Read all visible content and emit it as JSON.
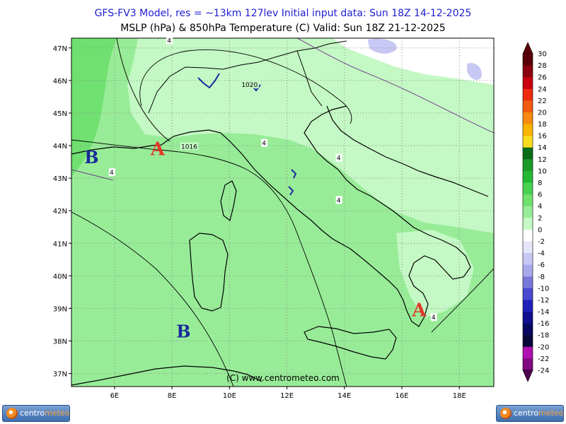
{
  "header": {
    "line1": "GFS-FV3 Model, res = ~13km 127lev    Initial input data: Sun 18Z 14-12-2025",
    "line2": "MSLP (hPa) & 850hPa Temperature (C)  Valid: Sun 18Z 21-12-2025"
  },
  "map": {
    "lon_range": [
      4.5,
      19.2
    ],
    "lat_range": [
      36.6,
      47.3
    ],
    "lon_ticks": [
      {
        "v": 6,
        "label": "6E"
      },
      {
        "v": 8,
        "label": "8E"
      },
      {
        "v": 10,
        "label": "10E"
      },
      {
        "v": 12,
        "label": "12E"
      },
      {
        "v": 14,
        "label": "14E"
      },
      {
        "v": 16,
        "label": "16E"
      },
      {
        "v": 18,
        "label": "18E"
      }
    ],
    "lat_ticks": [
      {
        "v": 47,
        "label": "47N"
      },
      {
        "v": 46,
        "label": "46N"
      },
      {
        "v": 45,
        "label": "45N"
      },
      {
        "v": 44,
        "label": "44N"
      },
      {
        "v": 43,
        "label": "43N"
      },
      {
        "v": 42,
        "label": "42N"
      },
      {
        "v": 41,
        "label": "41N"
      },
      {
        "v": 40,
        "label": "40N"
      },
      {
        "v": 39,
        "label": "39N"
      },
      {
        "v": 38,
        "label": "38N"
      },
      {
        "v": 37,
        "label": "37N"
      }
    ],
    "isobar_labels": [
      {
        "text": "1020",
        "lon": 10.7,
        "lat": 45.85
      },
      {
        "text": "1016",
        "lon": 8.6,
        "lat": 43.95
      }
    ],
    "isotherm_labels": [
      {
        "text": "4",
        "lon": 7.9,
        "lat": 47.2
      },
      {
        "text": "4",
        "lon": 11.2,
        "lat": 44.05
      },
      {
        "text": "4",
        "lon": 5.9,
        "lat": 43.15
      },
      {
        "text": "4",
        "lon": 13.8,
        "lat": 43.6
      },
      {
        "text": "4",
        "lon": 13.8,
        "lat": 42.3
      },
      {
        "text": "4",
        "lon": 17.1,
        "lat": 38.7
      }
    ],
    "pressure_centers": [
      {
        "type": "A",
        "lon": 7.5,
        "lat": 43.9
      },
      {
        "type": "A",
        "lon": 16.6,
        "lat": 38.95
      },
      {
        "type": "B",
        "lon": 5.2,
        "lat": 43.65
      },
      {
        "type": "B",
        "lon": 8.4,
        "lat": 38.3
      }
    ],
    "credit": "(C) www.centrometeo.com"
  },
  "colorbar": {
    "unit": "C",
    "levels": [
      {
        "label": "30",
        "color": "#5a0008"
      },
      {
        "label": "28",
        "color": "#8a0010"
      },
      {
        "label": "26",
        "color": "#c80010"
      },
      {
        "label": "24",
        "color": "#ee2a10"
      },
      {
        "label": "22",
        "color": "#f05a10"
      },
      {
        "label": "20",
        "color": "#f88a10"
      },
      {
        "label": "18",
        "color": "#f8b400"
      },
      {
        "label": "16",
        "color": "#f8dc20"
      },
      {
        "label": "14",
        "color": "#0a6c18"
      },
      {
        "label": "12",
        "color": "#1a9a28"
      },
      {
        "label": "10",
        "color": "#24b834"
      },
      {
        "label": "8",
        "color": "#48d050"
      },
      {
        "label": "6",
        "color": "#70e070"
      },
      {
        "label": "4",
        "color": "#98ec98"
      },
      {
        "label": "2",
        "color": "#c4f8c4"
      },
      {
        "label": "0",
        "color": "#ffffff"
      },
      {
        "label": "-2",
        "color": "#e6e6fa"
      },
      {
        "label": "-4",
        "color": "#c8c8f4"
      },
      {
        "label": "-6",
        "color": "#a8a8ec"
      },
      {
        "label": "-8",
        "color": "#7878dc"
      },
      {
        "label": "-10",
        "color": "#4848d0"
      },
      {
        "label": "-12",
        "color": "#2020b8"
      },
      {
        "label": "-14",
        "color": "#101090"
      },
      {
        "label": "-16",
        "color": "#080860"
      },
      {
        "label": "-18",
        "color": "#06063a"
      },
      {
        "label": "-20",
        "color": "#b010b0"
      },
      {
        "label": "-22",
        "color": "#800880"
      },
      {
        "label": "-24",
        "color": "#500050"
      }
    ]
  },
  "logos": {
    "left": {
      "part1": "centro",
      "part2": "meteo"
    },
    "right": {
      "part1": "centro",
      "part2": "meteo"
    }
  }
}
